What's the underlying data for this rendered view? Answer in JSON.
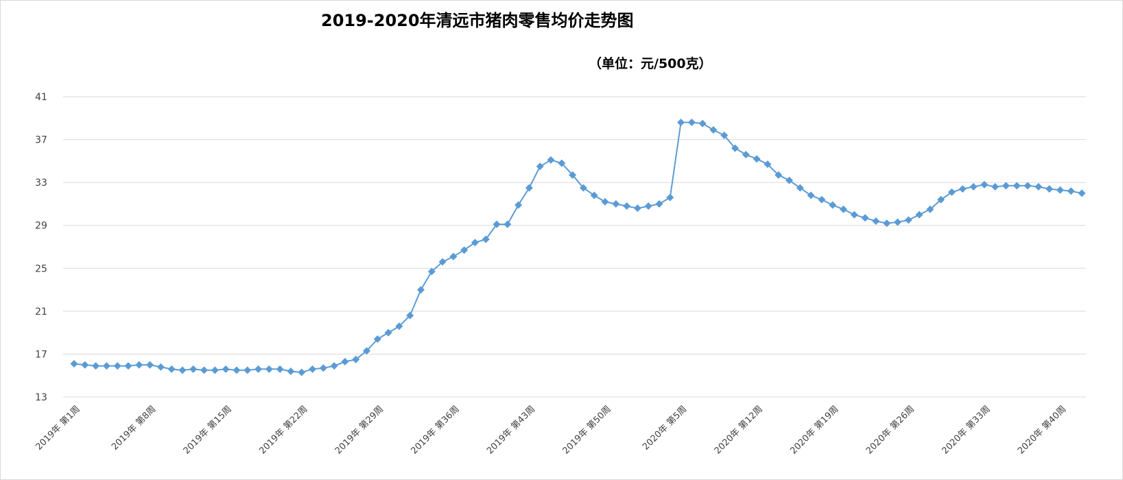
{
  "chart_data": {
    "type": "line",
    "title": "2019-2020年清远市猪肉零售均价走势图",
    "subtitle": "（单位：元/500克）",
    "xlabel": "",
    "ylabel": "",
    "ylim": [
      13,
      41
    ],
    "yticks": [
      13,
      17,
      21,
      25,
      29,
      33,
      37,
      41
    ],
    "grid": true,
    "legend": "none",
    "colors": {
      "line": "#5b9bd5",
      "marker": "#5b9bd5",
      "grid": "#d9d9d9"
    },
    "xtick_labels": [
      "2019年 第1周",
      "2019年 第8周",
      "2019年 第15周",
      "2019年 第22周",
      "2019年 第29周",
      "2019年 第36周",
      "2019年 第43周",
      "2019年 第50周",
      "2020年 第5周",
      "2020年 第12周",
      "2020年 第19周",
      "2020年 第26周",
      "2020年 第33周",
      "2020年 第40周"
    ],
    "xtick_every": 7,
    "series": [
      {
        "values": [
          16.1,
          16.0,
          15.9,
          15.9,
          15.9,
          15.9,
          16.0,
          16.0,
          15.8,
          15.6,
          15.5,
          15.6,
          15.5,
          15.5,
          15.6,
          15.5,
          15.5,
          15.6,
          15.6,
          15.6,
          15.4,
          15.3,
          15.6,
          15.7,
          15.9,
          16.3,
          16.5,
          17.3,
          18.4,
          19.0,
          19.6,
          20.6,
          23.0,
          24.7,
          25.6,
          26.1,
          26.7,
          27.4,
          27.7,
          29.1,
          29.1,
          30.9,
          32.5,
          34.5,
          35.1,
          34.8,
          33.7,
          32.5,
          31.8,
          31.2,
          31.0,
          30.8,
          30.6,
          30.8,
          31.0,
          31.6,
          38.6,
          38.6,
          38.5,
          37.9,
          37.4,
          36.2,
          35.6,
          35.2,
          34.7,
          33.7,
          33.2,
          32.5,
          31.8,
          31.4,
          30.9,
          30.5,
          30.0,
          29.7,
          29.4,
          29.2,
          29.3,
          29.5,
          30.0,
          30.5,
          31.4,
          32.1,
          32.4,
          32.6,
          32.8,
          32.6,
          32.7,
          32.7,
          32.7,
          32.6,
          32.4,
          32.3,
          32.2,
          32.0
        ]
      }
    ]
  }
}
